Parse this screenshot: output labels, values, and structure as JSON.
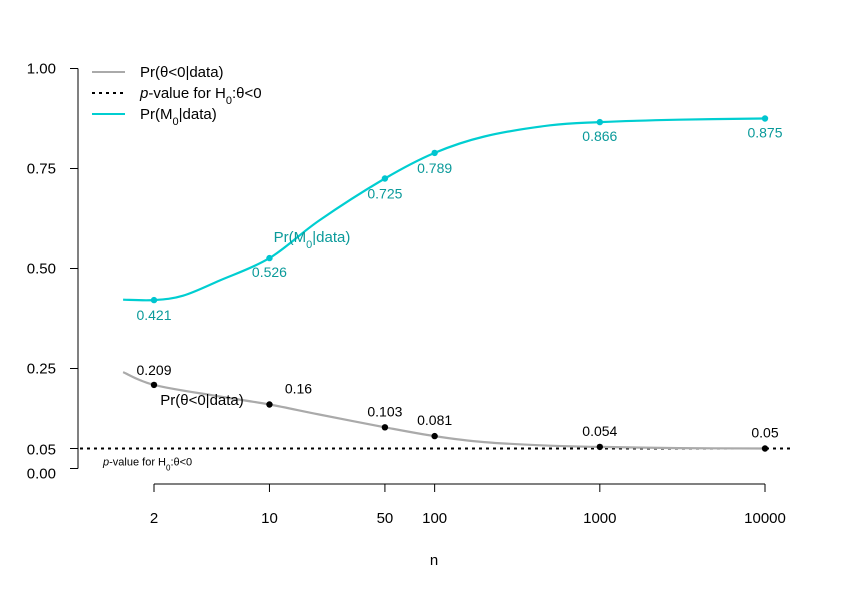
{
  "chart_data": {
    "type": "line",
    "xlabel": "n",
    "ylabel": "",
    "x_scale": "log",
    "ylim": [
      0,
      1
    ],
    "grid": false,
    "legend_position": "top-left",
    "x_ticks": [
      2,
      10,
      50,
      100,
      1000,
      10000
    ],
    "x_tick_labels": [
      "2",
      "10",
      "50",
      "100",
      "1000",
      "10000"
    ],
    "y_ticks": [
      0,
      0.05,
      0.25,
      0.5,
      0.75,
      1.0
    ],
    "y_tick_labels": [
      "0.00",
      "0.05",
      "0.25",
      "0.50",
      "0.75",
      "1.00"
    ],
    "series": [
      {
        "key": "theta",
        "name": "Pr(θ<0|data)",
        "color": "#aaaaaa",
        "point_color": "#000000",
        "label_color": "#000000",
        "points": [
          {
            "x": 2,
            "y": 0.209,
            "label": "0.209"
          },
          {
            "x": 10,
            "y": 0.16,
            "label": "0.16"
          },
          {
            "x": 50,
            "y": 0.103,
            "label": "0.103"
          },
          {
            "x": 100,
            "y": 0.081,
            "label": "0.081"
          },
          {
            "x": 1000,
            "y": 0.054,
            "label": "0.054"
          },
          {
            "x": 10000,
            "y": 0.05,
            "label": "0.05"
          }
        ],
        "curve": [
          [
            1.3,
            0.241
          ],
          [
            2,
            0.209
          ],
          [
            5,
            0.18
          ],
          [
            10,
            0.16
          ],
          [
            20,
            0.135
          ],
          [
            50,
            0.103
          ],
          [
            100,
            0.081
          ],
          [
            200,
            0.066
          ],
          [
            500,
            0.057
          ],
          [
            1000,
            0.054
          ],
          [
            3000,
            0.051
          ],
          [
            10000,
            0.05
          ]
        ],
        "annotation": "Pr(θ<0|data)"
      },
      {
        "key": "m0",
        "name": "Pr(M0|data)",
        "color": "#00ced1",
        "point_color": "#00c5d0",
        "label_color": "#0a9a9a",
        "points": [
          {
            "x": 2,
            "y": 0.421,
            "label": "0.421"
          },
          {
            "x": 10,
            "y": 0.526,
            "label": "0.526"
          },
          {
            "x": 50,
            "y": 0.725,
            "label": "0.725"
          },
          {
            "x": 100,
            "y": 0.789,
            "label": "0.789"
          },
          {
            "x": 1000,
            "y": 0.866,
            "label": "0.866"
          },
          {
            "x": 10000,
            "y": 0.875,
            "label": "0.875"
          }
        ],
        "curve": [
          [
            1.3,
            0.422
          ],
          [
            2,
            0.421
          ],
          [
            3,
            0.432
          ],
          [
            5,
            0.47
          ],
          [
            10,
            0.526
          ],
          [
            20,
            0.62
          ],
          [
            50,
            0.725
          ],
          [
            100,
            0.789
          ],
          [
            200,
            0.83
          ],
          [
            500,
            0.858
          ],
          [
            1000,
            0.866
          ],
          [
            3000,
            0.872
          ],
          [
            10000,
            0.875
          ]
        ],
        "annotation": "Pr(M0|data)"
      }
    ],
    "reference_line": {
      "y": 0.05,
      "name": "p-value for H0:θ<0",
      "color": "#000000",
      "style": "dotted",
      "annotation": "p-value for H0:θ<0"
    },
    "legend": [
      {
        "key": "theta",
        "label": "Pr(θ<0|data)",
        "color": "#aaaaaa",
        "style": "solid"
      },
      {
        "key": "pvalue",
        "label": "p-value for H0:θ<0",
        "color": "#000000",
        "style": "dotted"
      },
      {
        "key": "m0",
        "label": "Pr(M0|data)",
        "color": "#00ced1",
        "style": "solid"
      }
    ]
  }
}
